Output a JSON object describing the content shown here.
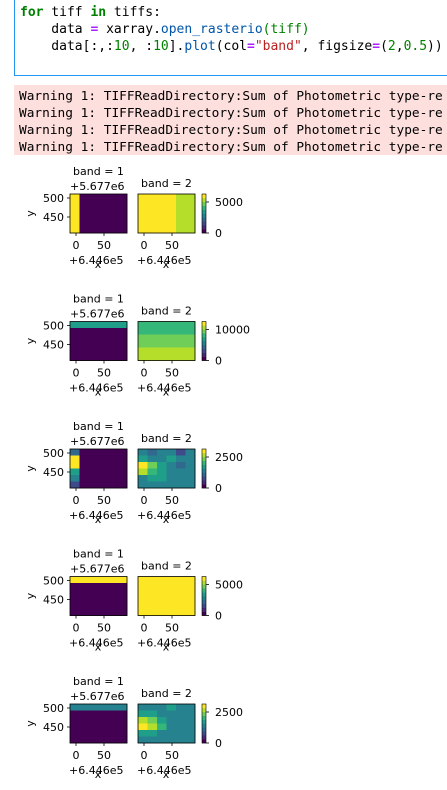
{
  "code": {
    "line1": {
      "kw_for": "for",
      "var1": " tiff ",
      "kw_in": "in",
      "rest": " tiffs:"
    },
    "line2": {
      "indent": "    data ",
      "eq": "=",
      "mid": " xarray.",
      "fn": "open_rasterio",
      "args": "(tiff)"
    },
    "line3": {
      "indent": "    data[:,:",
      "n1": "10",
      "sep": ", :",
      "n2": "10",
      "mid": "].",
      "fn": "plot",
      "p1": "(col",
      "eq1": "=",
      "s1": "\"band\"",
      "p2": ", figsize",
      "eq2": "=",
      "p3": "(",
      "n3": "2",
      "p4": ",",
      "n4": "0.5",
      "p5": "))"
    }
  },
  "warnings": [
    "Warning 1: TIFFReadDirectory:Sum of Photometric type-re",
    "Warning 1: TIFFReadDirectory:Sum of Photometric type-re",
    "Warning 1: TIFFReadDirectory:Sum of Photometric type-re",
    "Warning 1: TIFFReadDirectory:Sum of Photometric type-re"
  ],
  "colors": {
    "cell_border": "#2196f3",
    "warning_bg": "#fddfdd",
    "viridis_dark": "#440154",
    "viridis_yellow": "#fde725"
  },
  "chart_data": [
    {
      "type": "heatmap",
      "panel_titles": [
        "band = 1",
        "band = 2"
      ],
      "ylabel": "y",
      "xlabel": "x",
      "y_offset": "+5.677e6",
      "x_offset": "+6.446e5",
      "y_ticks": [
        "500",
        "450"
      ],
      "x_ticks": [
        "0",
        "50"
      ],
      "colorbar_ticks": [
        "5000",
        "0"
      ]
    },
    {
      "type": "heatmap",
      "panel_titles": [
        "band = 1",
        "band = 2"
      ],
      "ylabel": "y",
      "xlabel": "x",
      "y_offset": "+5.677e6",
      "x_offset": "+6.446e5",
      "y_ticks": [
        "500",
        "450"
      ],
      "x_ticks": [
        "0",
        "50"
      ],
      "colorbar_ticks": [
        "10000",
        "0"
      ]
    },
    {
      "type": "heatmap",
      "panel_titles": [
        "band = 1",
        "band = 2"
      ],
      "ylabel": "y",
      "xlabel": "x",
      "y_offset": "+5.677e6",
      "x_offset": "+6.446e5",
      "y_ticks": [
        "500",
        "450"
      ],
      "x_ticks": [
        "0",
        "50"
      ],
      "colorbar_ticks": [
        "2500",
        "0"
      ]
    },
    {
      "type": "heatmap",
      "panel_titles": [
        "band = 1",
        "band = 2"
      ],
      "ylabel": "y",
      "xlabel": "x",
      "y_offset": "+5.677e6",
      "x_offset": "+6.446e5",
      "y_ticks": [
        "500",
        "450"
      ],
      "x_ticks": [
        "0",
        "50"
      ],
      "colorbar_ticks": [
        "5000",
        "0"
      ]
    },
    {
      "type": "heatmap",
      "panel_titles": [
        "band = 1",
        "band = 2"
      ],
      "ylabel": "y",
      "xlabel": "x",
      "y_offset": "+5.677e6",
      "x_offset": "+6.446e5",
      "y_ticks": [
        "500",
        "450"
      ],
      "x_ticks": [
        "0",
        "50"
      ],
      "colorbar_ticks": [
        "2500",
        "0"
      ]
    }
  ]
}
